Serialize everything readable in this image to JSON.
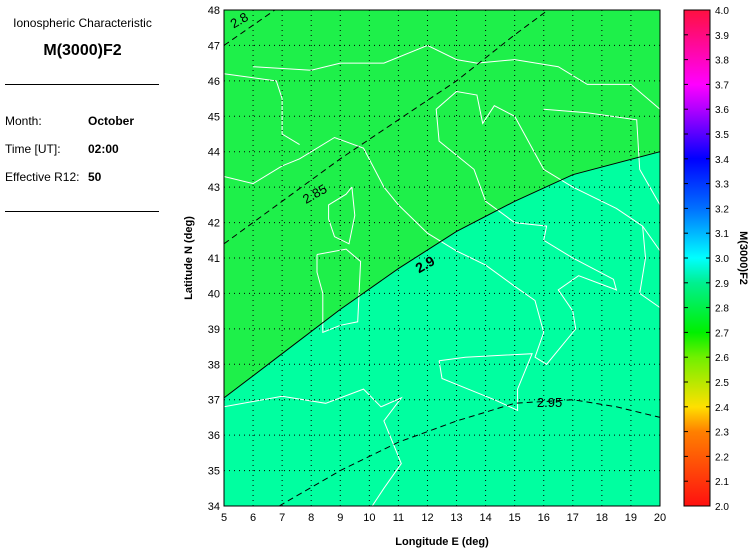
{
  "panel": {
    "subtitle": "Ionospheric Characteristic",
    "title": "M(3000)F2",
    "fields": [
      {
        "label": "Month:",
        "value": "October"
      },
      {
        "label": "Time [UT]:",
        "value": "02:00"
      },
      {
        "label": "Effective R12:",
        "value": "50"
      }
    ]
  },
  "map": {
    "xlabel": "Longitude E (deg)",
    "ylabel": "Latitude N (deg)",
    "xlim": [
      5,
      20
    ],
    "ylim": [
      34,
      48
    ],
    "xticks": [
      "5",
      "6",
      "7",
      "8",
      "9",
      "10",
      "11",
      "12",
      "13",
      "14",
      "15",
      "16",
      "17",
      "18",
      "19",
      "20"
    ],
    "yticks": [
      "34",
      "35",
      "36",
      "37",
      "38",
      "39",
      "40",
      "41",
      "42",
      "43",
      "44",
      "45",
      "46",
      "47",
      "48"
    ],
    "grid": "dotted",
    "regions": [
      {
        "range": "2.8-2.9",
        "color": "#1ef04a"
      },
      {
        "range": "2.9-3.0",
        "color": "#00ffa0"
      }
    ],
    "contours": [
      {
        "label": "2.8",
        "style": "dashed",
        "points": [
          [
            5,
            47.0
          ],
          [
            6.75,
            48
          ]
        ],
        "label_at": [
          5.6,
          47.6
        ]
      },
      {
        "label": "2.85",
        "style": "dashed",
        "points": [
          [
            5,
            41.4
          ],
          [
            7,
            42.6
          ],
          [
            9,
            43.8
          ],
          [
            11,
            44.9
          ],
          [
            13,
            46.0
          ],
          [
            15,
            47.3
          ],
          [
            16.15,
            48
          ]
        ],
        "label_at": [
          8.2,
          42.7
        ]
      },
      {
        "label": "2.9",
        "style": "solid",
        "points": [
          [
            5,
            37.05
          ],
          [
            7,
            38.3
          ],
          [
            9,
            39.55
          ],
          [
            11,
            40.7
          ],
          [
            13,
            41.75
          ],
          [
            15,
            42.6
          ],
          [
            17,
            43.35
          ],
          [
            20,
            44.0
          ]
        ],
        "label_at": [
          12.0,
          40.7
        ]
      },
      {
        "label": "2.95",
        "style": "dashed",
        "points": [
          [
            6.9,
            34
          ],
          [
            9,
            35
          ],
          [
            11,
            35.8
          ],
          [
            13,
            36.4
          ],
          [
            15,
            36.9
          ],
          [
            17,
            37.0
          ],
          [
            18.5,
            36.8
          ],
          [
            20,
            36.5
          ]
        ],
        "label_at": [
          16.2,
          36.8
        ]
      }
    ]
  },
  "colorbar": {
    "label": "M(3000)F2",
    "range": [
      2.0,
      4.0
    ],
    "ticks": [
      "2.0",
      "2.1",
      "2.2",
      "2.3",
      "2.4",
      "2.5",
      "2.6",
      "2.7",
      "2.8",
      "2.9",
      "3.0",
      "3.1",
      "3.2",
      "3.3",
      "3.4",
      "3.5",
      "3.6",
      "3.7",
      "3.8",
      "3.9",
      "4.0"
    ]
  }
}
